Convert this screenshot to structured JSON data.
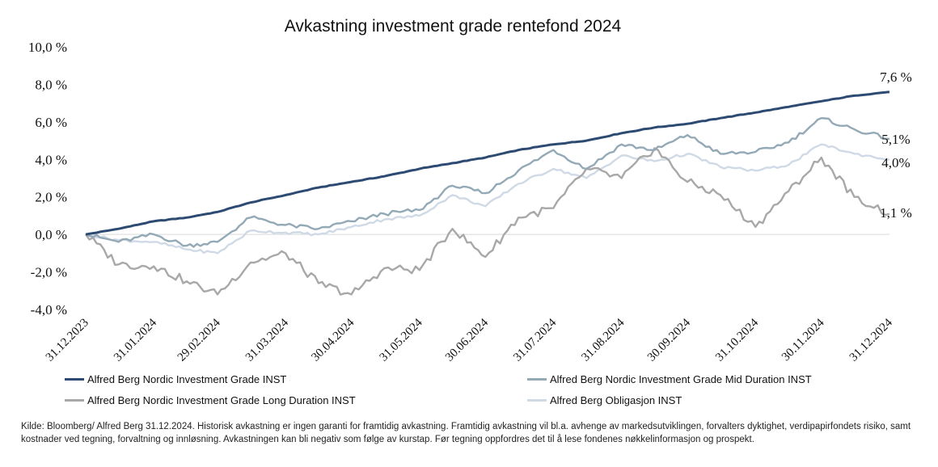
{
  "chart_data": {
    "type": "line",
    "title": "Avkastning investment grade rentefond 2024",
    "xlabel": "",
    "ylabel": "",
    "ylim": [
      -4,
      10
    ],
    "yticks": [
      10,
      8,
      6,
      4,
      2,
      0,
      -2,
      -4
    ],
    "ytick_labels": [
      "10,0 %",
      "8,0 %",
      "6,0 %",
      "4,0 %",
      "2,0 %",
      "0,0 %",
      "-2,0 %",
      "-4,0 %"
    ],
    "xticks": [
      "31.12.2023",
      "31.01.2024",
      "29.02.2024",
      "31.03.2024",
      "30.04.2024",
      "31.05.2024",
      "30.06.2024",
      "31.07.2024",
      "31.08.2024",
      "30.09.2024",
      "31.10.2024",
      "30.11.2024",
      "31.12.2024"
    ],
    "grid": false,
    "legend_position": "bottom",
    "series": [
      {
        "name": "Alfred Berg Nordic Investment Grade INST",
        "color": "#2c4a72",
        "end_label": "7,6 %",
        "x": [
          "31.12.2023",
          "15.01.2024",
          "31.01.2024",
          "15.02.2024",
          "29.02.2024",
          "15.03.2024",
          "31.03.2024",
          "15.04.2024",
          "30.04.2024",
          "15.05.2024",
          "31.05.2024",
          "15.06.2024",
          "30.06.2024",
          "15.07.2024",
          "31.07.2024",
          "15.08.2024",
          "31.08.2024",
          "15.09.2024",
          "30.09.2024",
          "15.10.2024",
          "31.10.2024",
          "15.11.2024",
          "30.11.2024",
          "15.12.2024",
          "31.12.2024"
        ],
        "values": [
          0.0,
          0.3,
          0.7,
          0.9,
          1.2,
          1.7,
          2.1,
          2.5,
          2.8,
          3.1,
          3.5,
          3.8,
          4.1,
          4.5,
          4.8,
          5.0,
          5.4,
          5.7,
          5.9,
          6.2,
          6.5,
          6.8,
          7.1,
          7.4,
          7.6
        ]
      },
      {
        "name": "Alfred Berg Nordic Investment Grade Mid Duration INST",
        "color": "#93a9b6",
        "end_label": "5,1%",
        "x": [
          "31.12.2023",
          "15.01.2024",
          "31.01.2024",
          "15.02.2024",
          "29.02.2024",
          "15.03.2024",
          "31.03.2024",
          "15.04.2024",
          "30.04.2024",
          "15.05.2024",
          "31.05.2024",
          "15.06.2024",
          "30.06.2024",
          "15.07.2024",
          "31.07.2024",
          "15.08.2024",
          "31.08.2024",
          "15.09.2024",
          "30.09.2024",
          "15.10.2024",
          "31.10.2024",
          "15.11.2024",
          "30.11.2024",
          "15.12.2024",
          "31.12.2024"
        ],
        "values": [
          0.0,
          -0.4,
          0.0,
          -0.6,
          -0.4,
          0.9,
          0.5,
          0.3,
          0.7,
          1.1,
          1.3,
          2.6,
          2.2,
          3.4,
          4.5,
          3.5,
          4.8,
          4.5,
          5.3,
          4.3,
          4.4,
          4.9,
          6.2,
          5.6,
          5.1
        ]
      },
      {
        "name": "Alfred Berg Nordic Investment Grade Long Duration INST",
        "color": "#a8a8a8",
        "end_label": "1,1 %",
        "x": [
          "31.12.2023",
          "15.01.2024",
          "31.01.2024",
          "15.02.2024",
          "29.02.2024",
          "15.03.2024",
          "31.03.2024",
          "15.04.2024",
          "30.04.2024",
          "15.05.2024",
          "31.05.2024",
          "15.06.2024",
          "30.06.2024",
          "15.07.2024",
          "31.07.2024",
          "15.08.2024",
          "31.08.2024",
          "15.09.2024",
          "30.09.2024",
          "15.10.2024",
          "31.10.2024",
          "15.11.2024",
          "30.11.2024",
          "15.12.2024",
          "31.12.2024"
        ],
        "values": [
          0.0,
          -1.6,
          -1.7,
          -2.5,
          -3.2,
          -1.5,
          -1.0,
          -2.6,
          -3.2,
          -1.8,
          -1.9,
          0.3,
          -1.2,
          0.9,
          1.4,
          3.5,
          3.0,
          4.6,
          2.8,
          2.1,
          0.4,
          2.3,
          4.1,
          2.0,
          1.1
        ]
      },
      {
        "name": "Alfred Berg Obligasjon INST",
        "color": "#d0d9e6",
        "end_label": "4,0%",
        "x": [
          "31.12.2023",
          "15.01.2024",
          "31.01.2024",
          "15.02.2024",
          "29.02.2024",
          "15.03.2024",
          "31.03.2024",
          "15.04.2024",
          "30.04.2024",
          "15.05.2024",
          "31.05.2024",
          "15.06.2024",
          "30.06.2024",
          "15.07.2024",
          "31.07.2024",
          "15.08.2024",
          "31.08.2024",
          "15.09.2024",
          "30.09.2024",
          "15.10.2024",
          "31.10.2024",
          "15.11.2024",
          "30.11.2024",
          "15.12.2024",
          "31.12.2024"
        ],
        "values": [
          0.0,
          -0.3,
          -0.4,
          -0.8,
          -1.0,
          0.2,
          0.1,
          0.0,
          0.4,
          0.8,
          1.0,
          2.1,
          1.5,
          2.7,
          3.5,
          3.0,
          4.2,
          3.9,
          4.3,
          3.6,
          3.4,
          3.7,
          4.8,
          4.3,
          4.0
        ]
      }
    ]
  },
  "footnote": "Kilde: Bloomberg/ Alfred Berg 31.12.2024. Historisk avkastning er ingen garanti for framtidig avkastning. Framtidig avkastning vil bl.a. avhenge av markedsutviklingen, forvalters dyktighet, verdipapirfondets risiko, samt kostnader ved tegning, forvaltning og innløsning. Avkastningen kan bli negativ som følge av kurstap. Før tegning oppfordres det til å lese fondenes nøkkelinformasjon og prospekt."
}
